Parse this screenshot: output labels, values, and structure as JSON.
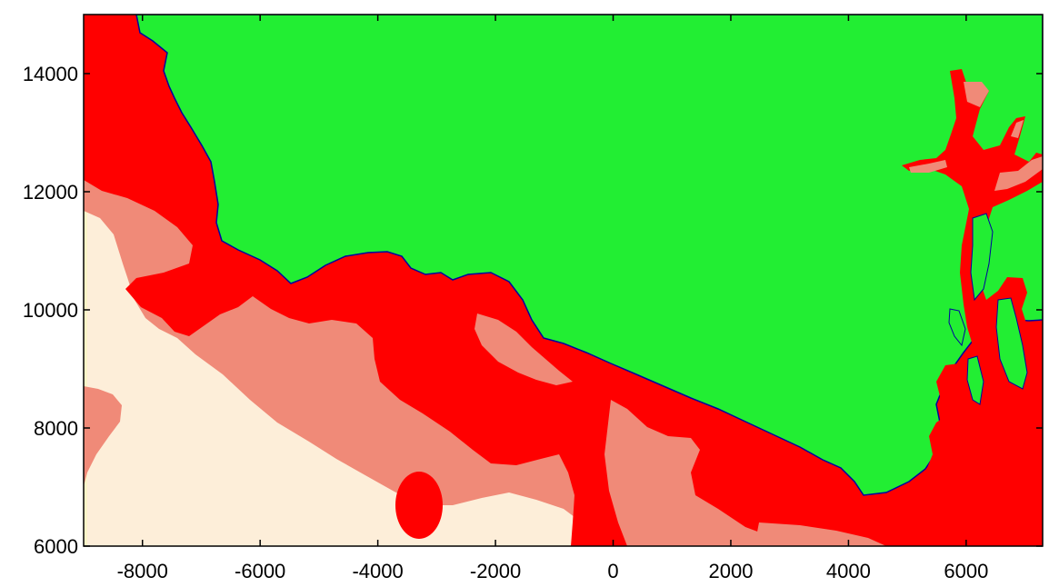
{
  "map": {
    "x_axis": {
      "range": [
        -9000,
        7300
      ],
      "ticks": [
        -8000,
        -6000,
        -4000,
        -2000,
        0,
        2000,
        4000,
        6000
      ],
      "tick_labels": [
        "-8000",
        "-6000",
        "-4000",
        "-2000",
        "0",
        "2000",
        "4000",
        "6000"
      ]
    },
    "y_axis": {
      "range": [
        6000,
        15000
      ],
      "ticks": [
        6000,
        8000,
        10000,
        12000,
        14000
      ],
      "tick_labels": [
        "6000",
        "8000",
        "10000",
        "12000",
        "14000"
      ]
    },
    "colors": {
      "land": "#22ee33",
      "coast_line": "#0000a0",
      "zone_red": "#ff0000",
      "zone_salmon": "#f08a78",
      "zone_cream": "#fdeed9",
      "zone_pale": "#fbf4c8",
      "frame": "#000000"
    }
  }
}
